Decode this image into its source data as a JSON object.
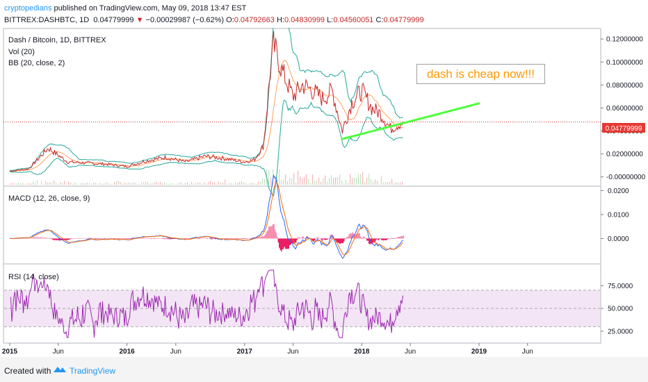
{
  "header": {
    "author": "cryptopedians",
    "published_text": " published on TradingView.com, May 09, 2018 13:47 EST",
    "symbol": "BITTREX:DASHBTC, 1D",
    "price": "0.04779999",
    "change_arrow": "▼",
    "change": "−0.00029987 (−0.62%)",
    "open_label": "O:",
    "open": "0.04792663",
    "high_label": "H:",
    "high": "0.04830999",
    "low_label": "L:",
    "low": "0.04560051",
    "close_label": "C:",
    "close": "0.04779999"
  },
  "legend": {
    "title": "Dash / Bitcoin, 1D, BITTREX",
    "vol": "Vol (20)",
    "bb": "BB (20, close, 2)",
    "macd": "MACD (12, 26, close, 9)",
    "rsi": "RSI (14, close)"
  },
  "annotation": "dash is cheap now!!!",
  "price_tag": "0.04779999",
  "footer": {
    "created": "Created with",
    "brand": "TradingView"
  },
  "colors": {
    "price_line": "#c62828",
    "bb_band": "#26a69a",
    "trend_line": "#4cff3a",
    "macd_hist_neg": "#e91e63",
    "rsi_line": "#9c27b0",
    "rsi_band": "#f3e5f5",
    "annotation_text": "#ff9800",
    "price_tag_bg": "#e53935"
  },
  "chart_data": [
    {
      "type": "line",
      "panel": "price",
      "title": "Dash / Bitcoin, 1D, BITTREX",
      "y_ticks": [
        "0.12000000",
        "0.10000000",
        "0.08000000",
        "0.06000000",
        "0.04000000",
        "0.02000000",
        "-0.00000000"
      ],
      "ylim": [
        -0.002,
        0.128
      ],
      "x_ticks": [
        "2015",
        "Jun",
        "2016",
        "Jun",
        "2017",
        "Jun",
        "2018",
        "Jun",
        "2019",
        "Jun"
      ],
      "series": [
        {
          "name": "close",
          "x": [
            "2015-01",
            "2015-03",
            "2015-05",
            "2015-07",
            "2015-09",
            "2015-11",
            "2016-01",
            "2016-03",
            "2016-05",
            "2016-07",
            "2016-09",
            "2016-11",
            "2017-01",
            "2017-02",
            "2017-03",
            "2017-03-20",
            "2017-04",
            "2017-05",
            "2017-06",
            "2017-07",
            "2017-08",
            "2017-09",
            "2017-10",
            "2017-11",
            "2017-12",
            "2018-01",
            "2018-02",
            "2018-03",
            "2018-04",
            "2018-05-09"
          ],
          "values": [
            0.005,
            0.007,
            0.025,
            0.013,
            0.012,
            0.011,
            0.009,
            0.014,
            0.017,
            0.013,
            0.018,
            0.016,
            0.013,
            0.015,
            0.027,
            0.085,
            0.115,
            0.09,
            0.07,
            0.08,
            0.075,
            0.068,
            0.075,
            0.04,
            0.065,
            0.075,
            0.06,
            0.055,
            0.042,
            0.0478
          ]
        }
      ],
      "trend_line": {
        "from": [
          "2017-11",
          "0.033"
        ],
        "to": [
          "2019-01",
          "0.064"
        ]
      }
    },
    {
      "type": "line",
      "panel": "macd",
      "title": "MACD (12, 26, close, 9)",
      "y_ticks": [
        "0.0200",
        "0.0100",
        "0.0000"
      ],
      "ylim": [
        -0.008,
        0.021
      ]
    },
    {
      "type": "line",
      "panel": "rsi",
      "title": "RSI (14, close)",
      "y_ticks": [
        "75.0000",
        "50.0000",
        "25.0000"
      ],
      "ylim": [
        15,
        95
      ],
      "band": [
        30,
        70
      ]
    }
  ]
}
